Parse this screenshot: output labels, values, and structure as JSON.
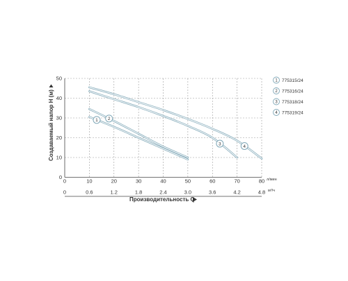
{
  "chart_data": {
    "type": "line",
    "title": "",
    "ylabel": "Создаваемый напор H (м)",
    "xlabel": "Производительность Q",
    "xlim": [
      0,
      80
    ],
    "ylim": [
      0,
      50
    ],
    "x_ticks": [
      "0",
      "10",
      "20",
      "30",
      "40",
      "50",
      "60",
      "70",
      "80"
    ],
    "y_ticks": [
      "0",
      "10",
      "20",
      "30",
      "40",
      "50"
    ],
    "x_unit_primary": "л/мин",
    "x_unit_secondary": "м³/ч",
    "secondary_ticks": [
      "0",
      "0.6",
      "1.2",
      "1.8",
      "2.4",
      "3.0",
      "3.6",
      "4.2",
      "4.8"
    ],
    "grid": true,
    "legend_position": "right",
    "colors": {
      "curve_outer": "#7fa7b7",
      "curve_inner": "#ffffff",
      "grid": "#9a9a9a",
      "axis": "#444444"
    },
    "series": [
      {
        "name": "775315/24",
        "marker": "1",
        "marker_at": 13,
        "x": [
          10,
          20,
          30,
          40,
          50
        ],
        "y": [
          30.5,
          25.5,
          20,
          14.5,
          9
        ]
      },
      {
        "name": "775316/24",
        "marker": "2",
        "marker_at": 18,
        "x": [
          10,
          20,
          30,
          40,
          50
        ],
        "y": [
          34.5,
          28.5,
          22,
          15.5,
          10
        ]
      },
      {
        "name": "775318/24",
        "marker": "3",
        "marker_at": 63,
        "x": [
          10,
          20,
          30,
          40,
          50,
          60,
          70
        ],
        "y": [
          43.5,
          39.5,
          35.5,
          31,
          26,
          20,
          10
        ]
      },
      {
        "name": "775319/24",
        "marker": "4",
        "marker_at": 73,
        "x": [
          10,
          20,
          30,
          40,
          50,
          60,
          70,
          80
        ],
        "y": [
          45.5,
          42,
          38,
          34,
          29.5,
          24.5,
          18.5,
          9.5
        ]
      }
    ]
  }
}
